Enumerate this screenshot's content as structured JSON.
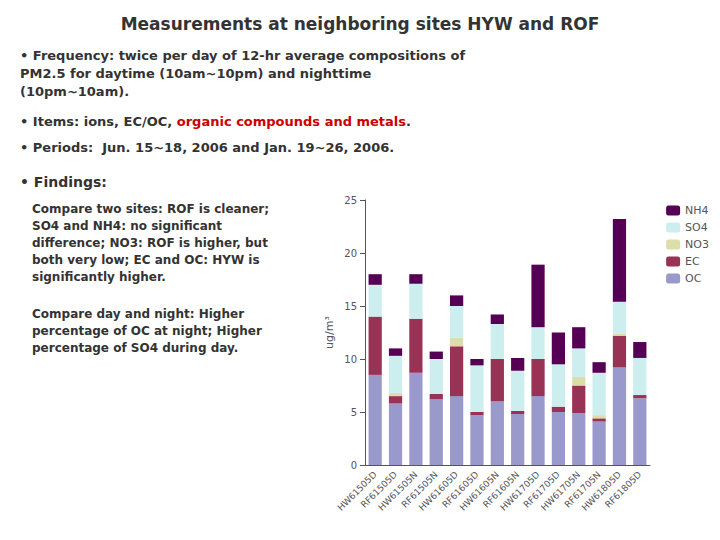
{
  "chart_data": {
    "type": "bar",
    "title": "Measurements at neighboring sites HYW and ROF",
    "annotations": [
      {
        "text": "• Frequency: twice per day of 12-hr average compositions of\nPM2.5 for daytime (10am~10pm) and nighttime\n(10pm~10am)."
      },
      {
        "parts": [
          {
            "text": "• Items: ions, EC/OC, "
          },
          {
            "text": "organic compounds and metals",
            "color": "#cc0000"
          },
          {
            "text": "."
          }
        ]
      },
      {
        "text": "• Periods:  Jun. 15~18, 2006 and Jan. 19~26, 2006."
      },
      {
        "text": "• Findings:"
      },
      {
        "text": "Compare two sites: ROF is cleaner;\nSO4 and NH4: no significant\ndifference; NO3: ROF is higher, but\nboth very low; EC and OC: HYW is\nsignificantly higher."
      },
      {
        "text": "Compare day and night: Higher\npercentage of OC at night; Higher\npercentage of SO4 during day."
      }
    ],
    "categories": [
      "HW61505D",
      "RF61505D",
      "HW61505N",
      "RF61505N",
      "HW61605D",
      "RF61605D",
      "HW61605N",
      "RF61605N",
      "HW61705D",
      "RF61705D",
      "HW61705N",
      "RF61705N",
      "HW61805D",
      "RF61805D"
    ],
    "series": [
      {
        "name": "OC",
        "color": "#9999cc",
        "values": [
          8.5,
          5.8,
          8.7,
          6.2,
          6.5,
          4.7,
          6.0,
          4.8,
          6.5,
          5.0,
          4.9,
          4.1,
          9.2,
          6.3
        ]
      },
      {
        "name": "EC",
        "color": "#993355",
        "values": [
          5.5,
          0.7,
          5.1,
          0.5,
          4.7,
          0.3,
          4.0,
          0.3,
          3.5,
          0.5,
          2.6,
          0.3,
          3.0,
          0.3
        ]
      },
      {
        "name": "NO3",
        "color": "#ddddaa",
        "values": [
          0.0,
          0.3,
          0.0,
          0.0,
          0.8,
          0.0,
          0.0,
          0.0,
          0.0,
          0.0,
          0.8,
          0.3,
          0.2,
          0.0
        ]
      },
      {
        "name": "SO4",
        "color": "#cceeee",
        "values": [
          3.0,
          3.5,
          3.3,
          3.3,
          3.0,
          4.4,
          3.3,
          3.8,
          3.0,
          4.0,
          2.7,
          4.0,
          3.0,
          3.5
        ]
      },
      {
        "name": "NH4",
        "color": "#550055",
        "values": [
          1.0,
          0.7,
          0.9,
          0.7,
          1.0,
          0.6,
          0.9,
          1.2,
          5.9,
          3.0,
          2.0,
          1.0,
          7.8,
          1.5
        ]
      }
    ],
    "ylabel": "ug/m³",
    "ylim": [
      0,
      25
    ],
    "yticks": [
      0,
      5,
      10,
      15,
      20,
      25
    ],
    "stacked": true,
    "legend": "upper right",
    "grid": false
  }
}
